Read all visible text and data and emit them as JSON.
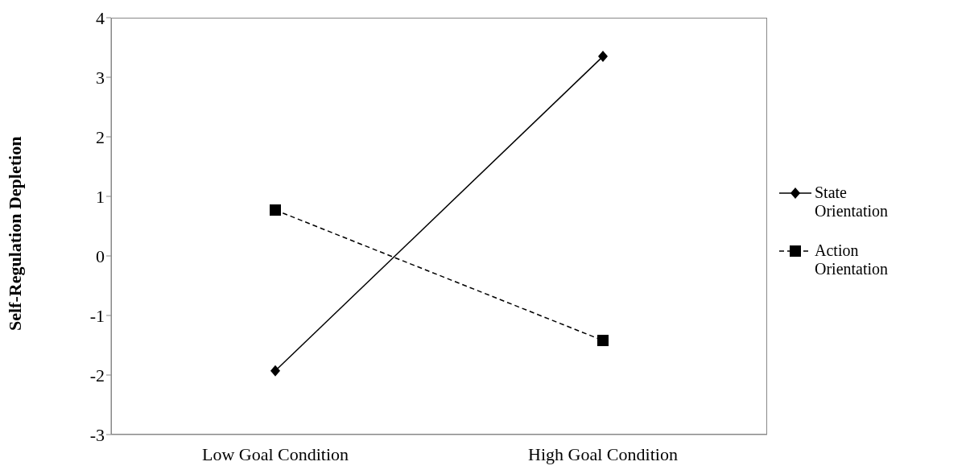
{
  "chart_data": {
    "type": "line",
    "ylabel": "Self-Regulation Depletion",
    "categories": [
      "Low Goal Condition",
      "High Goal Condition"
    ],
    "series": [
      {
        "name": "State Orientation",
        "color": "#000000",
        "values": [
          -1.93,
          3.35
        ],
        "marker": "diamond",
        "line_style": "solid"
      },
      {
        "name": "Action Orientation",
        "color": "#000000",
        "values": [
          0.77,
          -1.42
        ],
        "marker": "square",
        "line_style": "dashed"
      }
    ],
    "ylim": [
      -3,
      4
    ],
    "yticks": [
      -3,
      -2,
      -1,
      0,
      1,
      2,
      3,
      4
    ],
    "grid": false,
    "legend": "right"
  }
}
